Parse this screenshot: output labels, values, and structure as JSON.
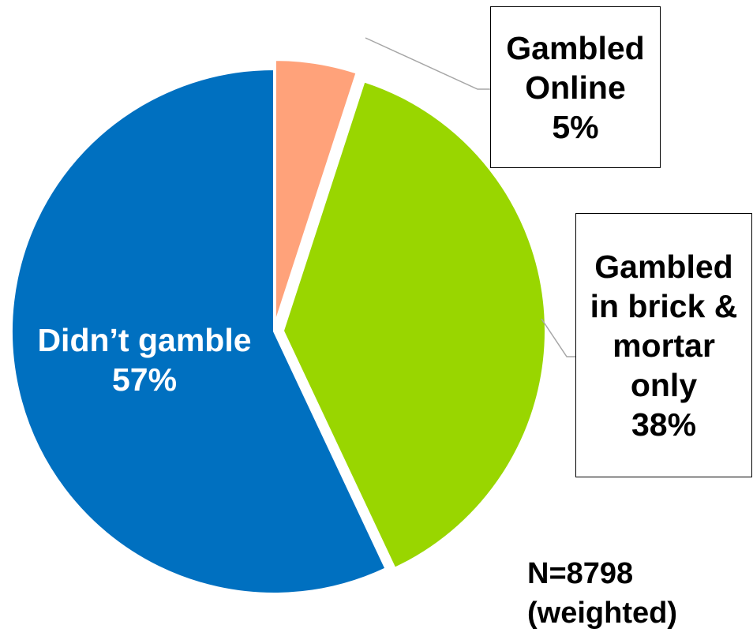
{
  "chart_data": {
    "type": "pie",
    "title": "",
    "slices": [
      {
        "label": "Didn’t gamble",
        "value": 57,
        "value_label": "57%",
        "color": "#0070C0",
        "exploded": false
      },
      {
        "label": "Gambled Online",
        "value": 5,
        "value_label": "5%",
        "color": "#FFA27A",
        "exploded": true
      },
      {
        "label": "Gambled in brick & mortar only",
        "value": 38,
        "value_label": "38%",
        "color": "#99D600",
        "exploded": true
      }
    ],
    "label_placement": {
      "Didn’t gamble": "inside",
      "Gambled Online": "callout-top-right",
      "Gambled in brick & mortar only": "callout-right"
    },
    "legend": "none",
    "callouts": {
      "online": {
        "lines": [
          "Gambled",
          "Online",
          "5%"
        ]
      },
      "brick": {
        "lines": [
          "Gambled",
          "in brick &",
          "mortar",
          "only",
          "38%"
        ]
      }
    },
    "inner_label": {
      "name": "Didn’t gamble",
      "percent": "57%"
    },
    "note": {
      "line1": "N=8798",
      "line2": "(weighted)"
    }
  }
}
